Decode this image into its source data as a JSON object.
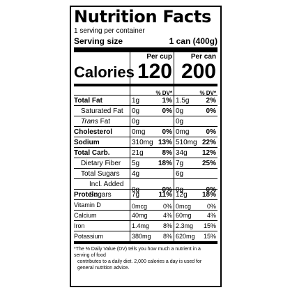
{
  "label": {
    "title": "Nutrition Facts",
    "servings_per_container": "1 serving per container",
    "serving_size_label": "Serving size",
    "serving_size_value": "1 can (400g)"
  },
  "columns": [
    {
      "header": "Per cup",
      "calories": "120"
    },
    {
      "header": "Per can",
      "calories": "200"
    }
  ],
  "calories_label": "Calories",
  "dv_header": "% DV*",
  "nutrients": [
    {
      "name": "Total Fat",
      "bold": true,
      "indent": 0,
      "italic_prefix": "",
      "values": [
        {
          "amount": "1g",
          "dv": "1%"
        },
        {
          "amount": "1.5g",
          "dv": "2%"
        }
      ]
    },
    {
      "name": "Saturated Fat",
      "bold": false,
      "indent": 1,
      "italic_prefix": "",
      "values": [
        {
          "amount": "0g",
          "dv": "0%"
        },
        {
          "amount": "0g",
          "dv": "0%"
        }
      ]
    },
    {
      "name": " Fat",
      "bold": false,
      "indent": 1,
      "italic_prefix": "Trans",
      "values": [
        {
          "amount": "0g",
          "dv": ""
        },
        {
          "amount": "0g",
          "dv": ""
        }
      ]
    },
    {
      "name": "Cholesterol",
      "bold": true,
      "indent": 0,
      "italic_prefix": "",
      "values": [
        {
          "amount": "0mg",
          "dv": "0%"
        },
        {
          "amount": "0mg",
          "dv": "0%"
        }
      ]
    },
    {
      "name": "Sodium",
      "bold": true,
      "indent": 0,
      "italic_prefix": "",
      "values": [
        {
          "amount": "310mg",
          "dv": "13%"
        },
        {
          "amount": "510mg",
          "dv": "22%"
        }
      ]
    },
    {
      "name": "Total Carb.",
      "bold": true,
      "indent": 0,
      "italic_prefix": "",
      "values": [
        {
          "amount": "21g",
          "dv": "8%"
        },
        {
          "amount": "34g",
          "dv": "12%"
        }
      ]
    },
    {
      "name": "Dietary Fiber",
      "bold": false,
      "indent": 1,
      "italic_prefix": "",
      "values": [
        {
          "amount": "5g",
          "dv": "18%"
        },
        {
          "amount": "7g",
          "dv": "25%"
        }
      ]
    },
    {
      "name": "Total Sugars",
      "bold": false,
      "indent": 1,
      "italic_prefix": "",
      "values": [
        {
          "amount": "4g",
          "dv": ""
        },
        {
          "amount": "6g",
          "dv": ""
        }
      ]
    },
    {
      "name": "Incl. Added Sugars",
      "bold": false,
      "indent": 2,
      "italic_prefix": "",
      "values": [
        {
          "amount": "0g",
          "dv": "0%"
        },
        {
          "amount": "0g",
          "dv": "0%"
        }
      ]
    },
    {
      "name": "Protein",
      "bold": true,
      "indent": 0,
      "italic_prefix": "",
      "values": [
        {
          "amount": "7g",
          "dv": "11%"
        },
        {
          "amount": "12g",
          "dv": "18%"
        }
      ]
    }
  ],
  "vitamins": [
    {
      "name": "Vitamin D",
      "values": [
        {
          "amount": "0mcg",
          "dv": "0%"
        },
        {
          "amount": "0mcg",
          "dv": "0%"
        }
      ]
    },
    {
      "name": "Calcium",
      "values": [
        {
          "amount": "40mg",
          "dv": "4%"
        },
        {
          "amount": "60mg",
          "dv": "4%"
        }
      ]
    },
    {
      "name": "Iron",
      "values": [
        {
          "amount": "1.4mg",
          "dv": "8%"
        },
        {
          "amount": "2.3mg",
          "dv": "15%"
        }
      ]
    },
    {
      "name": "Potassium",
      "values": [
        {
          "amount": "380mg",
          "dv": "8%"
        },
        {
          "amount": "620mg",
          "dv": "15%"
        }
      ]
    }
  ],
  "footnote_line1": "*The % Daily Value (DV) tells you how much a nutrient in a serving of food",
  "footnote_line2": "contributes to a daily diet. 2,000 calories a day is used for general nutrition advice."
}
